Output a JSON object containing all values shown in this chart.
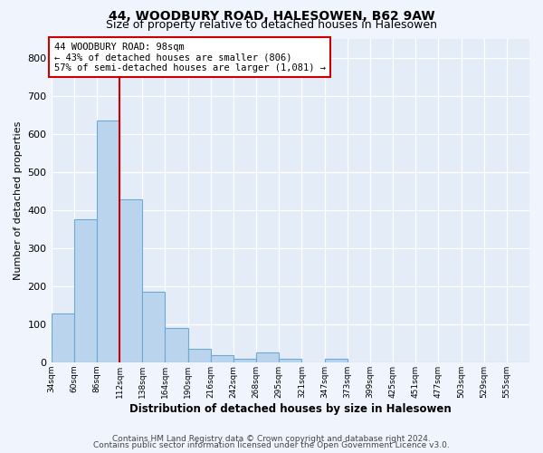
{
  "title1": "44, WOODBURY ROAD, HALESOWEN, B62 9AW",
  "title2": "Size of property relative to detached houses in Halesowen",
  "xlabel": "Distribution of detached houses by size in Halesowen",
  "ylabel": "Number of detached properties",
  "bin_labels": [
    "34sqm",
    "60sqm",
    "86sqm",
    "112sqm",
    "138sqm",
    "164sqm",
    "190sqm",
    "216sqm",
    "242sqm",
    "268sqm",
    "295sqm",
    "321sqm",
    "347sqm",
    "373sqm",
    "399sqm",
    "425sqm",
    "451sqm",
    "477sqm",
    "503sqm",
    "529sqm",
    "555sqm"
  ],
  "bar_values": [
    128,
    375,
    635,
    428,
    185,
    90,
    35,
    18,
    8,
    25,
    10,
    0,
    10,
    0,
    0,
    0,
    0,
    0,
    0,
    0,
    0
  ],
  "bar_color": "#bad4ee",
  "bar_edge_color": "#6aaad4",
  "vline_x_index": 2,
  "vline_color": "#cc0000",
  "annotation_text": "44 WOODBURY ROAD: 98sqm\n← 43% of detached houses are smaller (806)\n57% of semi-detached houses are larger (1,081) →",
  "annotation_box_color": "#ffffff",
  "annotation_box_edge": "#cc0000",
  "ylim": [
    0,
    850
  ],
  "yticks": [
    0,
    100,
    200,
    300,
    400,
    500,
    600,
    700,
    800
  ],
  "footer_line1": "Contains HM Land Registry data © Crown copyright and database right 2024.",
  "footer_line2": "Contains public sector information licensed under the Open Government Licence v3.0.",
  "bg_color": "#f0f4fc",
  "plot_bg_color": "#e4ecf7"
}
